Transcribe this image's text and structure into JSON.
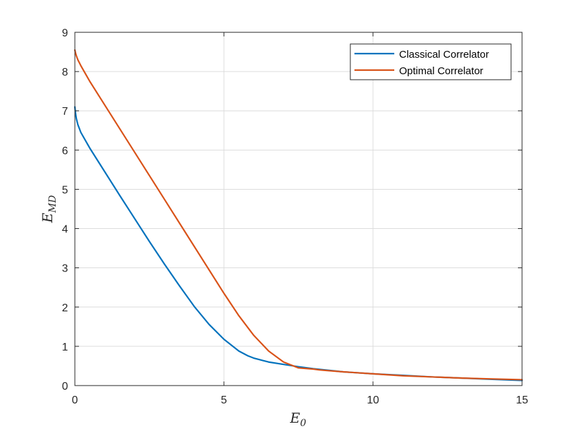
{
  "chart_data": {
    "type": "line",
    "xlabel": {
      "main": "E",
      "sub": "0"
    },
    "ylabel": {
      "main": "E",
      "sub": "MD"
    },
    "xlim": [
      0,
      15
    ],
    "ylim": [
      0,
      9
    ],
    "xticks": [
      "0",
      "5",
      "10",
      "15"
    ],
    "yticks": [
      "0",
      "1",
      "2",
      "3",
      "4",
      "5",
      "6",
      "7",
      "8",
      "9"
    ],
    "grid": true,
    "legend_position": "top-right",
    "series": [
      {
        "name": "Classical Correlator",
        "color": "#0072BD",
        "x": [
          0,
          0.02,
          0.05,
          0.1,
          0.2,
          0.5,
          1,
          1.5,
          2,
          2.5,
          3,
          3.5,
          4,
          4.5,
          5,
          5.5,
          5.8,
          6,
          6.2,
          6.5,
          7,
          7.5,
          8,
          8.5,
          9,
          10,
          11,
          12,
          13,
          14,
          15
        ],
        "y": [
          7.1,
          6.95,
          6.8,
          6.65,
          6.45,
          6.05,
          5.45,
          4.85,
          4.26,
          3.67,
          3.1,
          2.55,
          2.02,
          1.56,
          1.18,
          0.88,
          0.76,
          0.7,
          0.66,
          0.6,
          0.54,
          0.48,
          0.43,
          0.39,
          0.35,
          0.3,
          0.26,
          0.22,
          0.19,
          0.16,
          0.13
        ]
      },
      {
        "name": "Optimal Correlator",
        "color": "#D95319",
        "x": [
          0,
          0.02,
          0.05,
          0.1,
          0.2,
          0.5,
          1,
          1.5,
          2,
          2.5,
          3,
          3.5,
          4,
          4.5,
          5,
          5.5,
          6,
          6.5,
          7,
          7.5,
          8,
          8.2,
          8.5,
          9,
          10,
          11,
          12,
          13,
          14,
          15
        ],
        "y": [
          8.55,
          8.48,
          8.4,
          8.3,
          8.15,
          7.75,
          7.15,
          6.55,
          5.95,
          5.35,
          4.75,
          4.15,
          3.55,
          2.95,
          2.35,
          1.78,
          1.28,
          0.88,
          0.6,
          0.45,
          0.42,
          0.4,
          0.38,
          0.35,
          0.3,
          0.25,
          0.22,
          0.19,
          0.17,
          0.15
        ]
      }
    ]
  }
}
